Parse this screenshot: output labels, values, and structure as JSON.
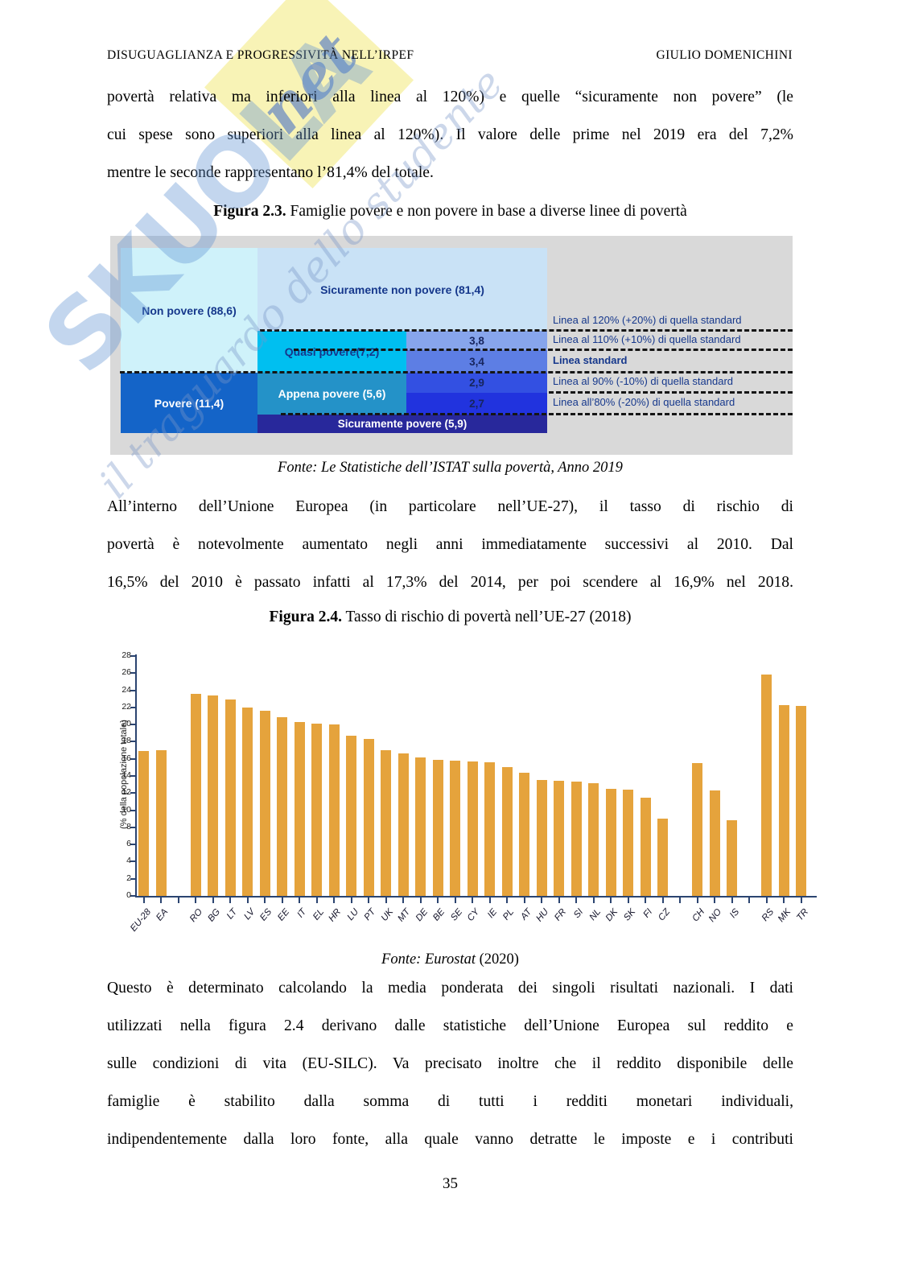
{
  "header": {
    "left": "DISUGUAGLIANZA E PROGRESSIVITÀ NELL’IRPEF",
    "right": "GIULIO DOMENICHINI"
  },
  "paragraph1": {
    "lines": [
      "povertà relativa ma inferiori alla linea al 120%) e quelle “sicuramente non povere” (le",
      "cui spese sono superiori alla linea al 120%). Il valore delle prime nel 2019 era del 7,2%",
      "mentre le seconde rappresentano l’81,4% del totale."
    ]
  },
  "figure23": {
    "caption_label": "Figura 2.3.",
    "caption_text": " Famiglie povere e non povere in base a diverse linee di povertà",
    "boxes": {
      "non_povere": "Non povere (88,6)",
      "sicuramente_non_povere": "Sicuramente non povere (81,4)",
      "quasi_povere": "Quasi povere(7,2)",
      "appena_povere": "Appena povere (5,6)",
      "povere": "Povere (11,4)",
      "sicuramente_povere": "Sicuramente povere (5,9)"
    },
    "values": {
      "v120_110": "3,8",
      "v110_100": "3,4",
      "v100_90": "2,9",
      "v90_80": "2,7"
    },
    "lines": {
      "l120": "Linea al 120% (+20%) di quella standard",
      "l110": "Linea al 110% (+10%) di quella standard",
      "lstd": "Linea standard",
      "l90": "Linea al 90% (-10%) di quella standard",
      "l80": "Linea all’80% (-20%) di quella standard"
    },
    "colors": {
      "panel_bg": "#D9D9D9",
      "non_povere": "#CFF2FA",
      "sicuramente_non_povere": "#C9E2F6",
      "quasi_povere": "#00BFF0",
      "appena_povere": "#2492C8",
      "povere": "#1464C8",
      "sicuramente_povere": "#28289B",
      "value_3_8": "#87A5EC",
      "value_3_4": "#5D7EE4",
      "value_2_9": "#3350E2",
      "value_2_7": "#2133DE",
      "label_text": "#16388C"
    },
    "fonte": "Fonte: Le Statistiche dell’ISTAT sulla povertà, Anno 2019"
  },
  "paragraph2": {
    "lines": [
      "All’interno dell’Unione Europea (in particolare nell’UE-27), il tasso di rischio di",
      "povertà è notevolmente aumentato negli anni immediatamente successivi al 2010. Dal",
      "16,5% del 2010 è passato infatti al 17,3% del 2014, per poi scendere al 16,9% nel 2018."
    ]
  },
  "figure24": {
    "caption_label": "Figura 2.4.",
    "caption_text": " Tasso di rischio di povertà nell’UE-27 (2018)",
    "fonte_italic": "Fonte: Eurostat",
    "fonte_rest": " (2020)"
  },
  "chart_data": {
    "type": "bar",
    "title": "Tasso di rischio di povertà nell'UE-27 (2018)",
    "xlabel": "",
    "ylabel": "(% della popolazione totale)",
    "ylim": [
      0,
      28
    ],
    "ytick_step": 2,
    "grid": false,
    "legend": "none",
    "bar_color": "#E5A33C",
    "axis_color": "#2B4470",
    "categories": [
      "EU-28",
      "EA",
      "RO",
      "BG",
      "LT",
      "LV",
      "ES",
      "EE",
      "IT",
      "EL",
      "HR",
      "LU",
      "PT",
      "UK",
      "MT",
      "DE",
      "BE",
      "SE",
      "CY",
      "IE",
      "PL",
      "AT",
      "HU",
      "FR",
      "SI",
      "NL",
      "DK",
      "SK",
      "FI",
      "CZ",
      "CH",
      "NO",
      "IS",
      "RS",
      "MK",
      "TR"
    ],
    "values": [
      16.9,
      17.0,
      23.6,
      23.4,
      22.9,
      22.0,
      21.6,
      20.9,
      20.3,
      20.1,
      20.0,
      18.7,
      18.3,
      17.0,
      16.6,
      16.2,
      15.9,
      15.8,
      15.7,
      15.6,
      15.0,
      14.4,
      13.5,
      13.4,
      13.3,
      13.2,
      12.5,
      12.4,
      11.5,
      9.0,
      15.5,
      12.3,
      8.8,
      25.8,
      22.3,
      22.2
    ],
    "gaps_after": [
      "EA",
      "CZ",
      "IS"
    ]
  },
  "paragraph3": {
    "lines": [
      "Questo è determinato calcolando la media ponderata dei singoli risultati nazionali. I dati",
      "utilizzati nella figura 2.4 derivano dalle statistiche dell’Unione Europea sul reddito e",
      "sulle condizioni di vita (EU-SILC). Va precisato inoltre che il reddito disponibile delle",
      "famiglie è stabilito dalla somma di tutti i redditi monetari individuali,",
      "indipendentemente dalla loro fonte, alla quale vanno detratte le imposte e i contributi"
    ]
  },
  "page_number": "35",
  "watermark": {
    "brand": "SKUOLA",
    "suffix": "net",
    "tagline": "il traguardo dello studente",
    "brand_color": "#6094D2",
    "diamond_color": "#F7F2B0"
  }
}
